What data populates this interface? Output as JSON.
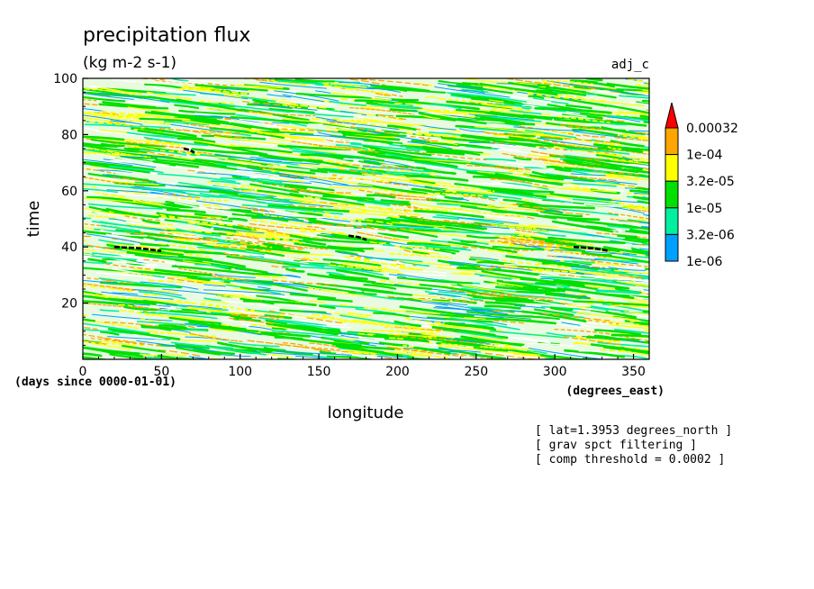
{
  "chart_data": {
    "type": "heatmap",
    "title": "precipitation flux",
    "units": "(kg m-2 s-1)",
    "dataset_label": "adj_c",
    "xlabel": "longitude",
    "x_units": "(degrees_east)",
    "ylabel": "time",
    "y_units": "(days since 0000-01-01)",
    "xlim": [
      0,
      360
    ],
    "ylim": [
      0,
      100
    ],
    "x_ticks": [
      "0",
      "50",
      "100",
      "150",
      "200",
      "250",
      "300",
      "350"
    ],
    "y_ticks": [
      "20",
      "40",
      "60",
      "80",
      "100"
    ],
    "grid": false,
    "legend_position": "right",
    "colorbar": {
      "levels": [
        "0.00032",
        "1e-04",
        "3.2e-05",
        "1e-05",
        "3.2e-06",
        "1e-06"
      ],
      "colors": [
        "#ff0000",
        "#ffa500",
        "#ffff00",
        "#00e000",
        "#00f0a0",
        "#00a0ff"
      ]
    },
    "annotations": [
      "[ lat=1.3953 degrees_north ]",
      "[ grav spct filtering ]",
      "[ comp threshold = 0.0002 ]"
    ]
  }
}
